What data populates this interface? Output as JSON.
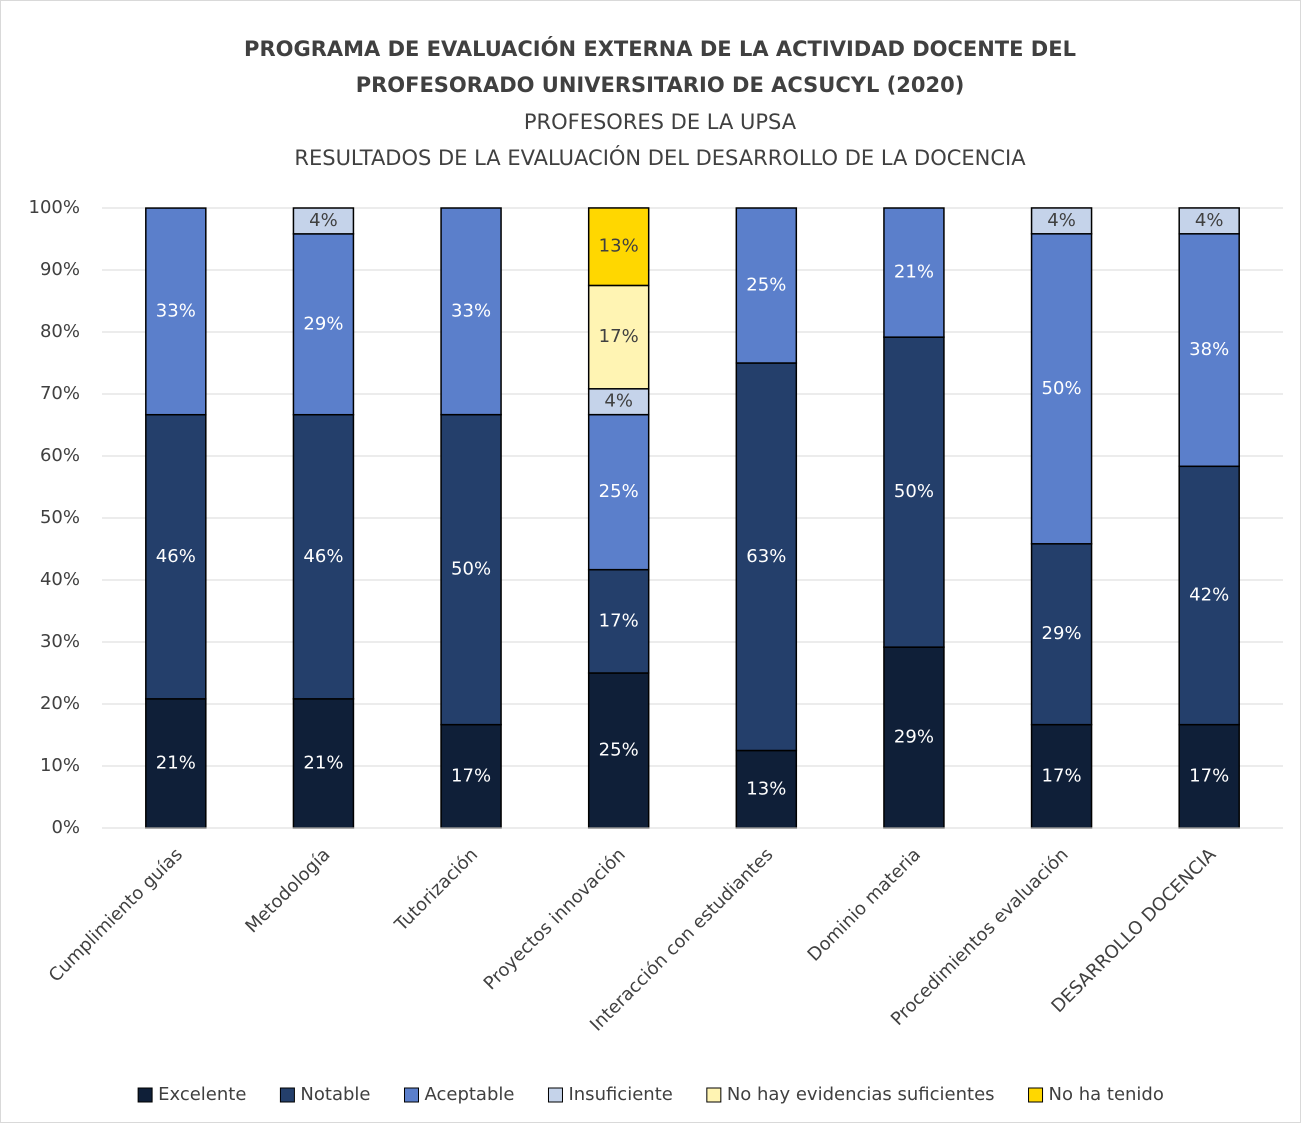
{
  "chart_data": {
    "type": "stacked_bar",
    "title": [
      "PROGRAMA DE EVALUACIÓN EXTERNA DE LA ACTIVIDAD DOCENTE DEL",
      "PROFESORADO UNIVERSITARIO DE ACSUCYL (2020)"
    ],
    "subtitle": [
      "PROFESORES DE LA UPSA",
      "RESULTADOS DE LA EVALUACIÓN DEL DESARROLLO DE LA DOCENCIA"
    ],
    "categories": [
      "Cumplimiento guías",
      "Metodología",
      "Tutorización",
      "Proyectos innovación",
      "Interacción con estudiantes",
      "Dominio materia",
      "Procedimientos evaluación",
      "DESARROLLO DOCENCIA"
    ],
    "series": [
      {
        "name": "Excelente",
        "color": "#0f1f38",
        "values": [
          20.83,
          20.83,
          16.67,
          25,
          12.5,
          29.17,
          16.67,
          16.67
        ],
        "value_labels": [
          "21%",
          "21%",
          "17%",
          "25%",
          "13%",
          "29%",
          "17%",
          "17%"
        ]
      },
      {
        "name": "Notable",
        "color": "#243f6b",
        "values": [
          45.83,
          45.83,
          50,
          16.67,
          62.5,
          50,
          29.17,
          41.67
        ],
        "value_labels": [
          "46%",
          "46%",
          "50%",
          "17%",
          "63%",
          "50%",
          "29%",
          "42%"
        ]
      },
      {
        "name": "Aceptable",
        "color": "#5b7fcb",
        "values": [
          33.33,
          29.17,
          33.33,
          25,
          25,
          20.83,
          50,
          37.5
        ],
        "value_labels": [
          "33%",
          "29%",
          "33%",
          "25%",
          "25%",
          "21%",
          "50%",
          "38%"
        ]
      },
      {
        "name": "Insuficiente",
        "color": "#c5d3ea",
        "values": [
          null,
          4.17,
          null,
          4.17,
          null,
          null,
          4.17,
          4.17
        ],
        "value_labels": [
          null,
          "4%",
          null,
          "4%",
          null,
          null,
          "4%",
          "4%"
        ]
      },
      {
        "name": "No hay evidencias suficientes",
        "color": "#fff4b3",
        "values": [
          null,
          null,
          null,
          16.67,
          null,
          null,
          null,
          null
        ],
        "value_labels": [
          null,
          null,
          null,
          "17%",
          null,
          null,
          null,
          null
        ]
      },
      {
        "name": "No ha tenido",
        "color": "#ffd700",
        "values": [
          null,
          null,
          null,
          12.5,
          null,
          null,
          null,
          null
        ],
        "value_labels": [
          null,
          null,
          null,
          "13%",
          null,
          null,
          null,
          null
        ]
      }
    ],
    "ylim": [
      0,
      100
    ],
    "yticks": [
      {
        "value": 0,
        "label": "0%"
      },
      {
        "value": 10,
        "label": "10%"
      },
      {
        "value": 20,
        "label": "20%"
      },
      {
        "value": 30,
        "label": "30%"
      },
      {
        "value": 40,
        "label": "40%"
      },
      {
        "value": 50,
        "label": "50%"
      },
      {
        "value": 60,
        "label": "60%"
      },
      {
        "value": 70,
        "label": "70%"
      },
      {
        "value": 80,
        "label": "80%"
      },
      {
        "value": 90,
        "label": "90%"
      },
      {
        "value": 100,
        "label": "100%"
      }
    ],
    "grid": true,
    "legend": "bottom"
  }
}
